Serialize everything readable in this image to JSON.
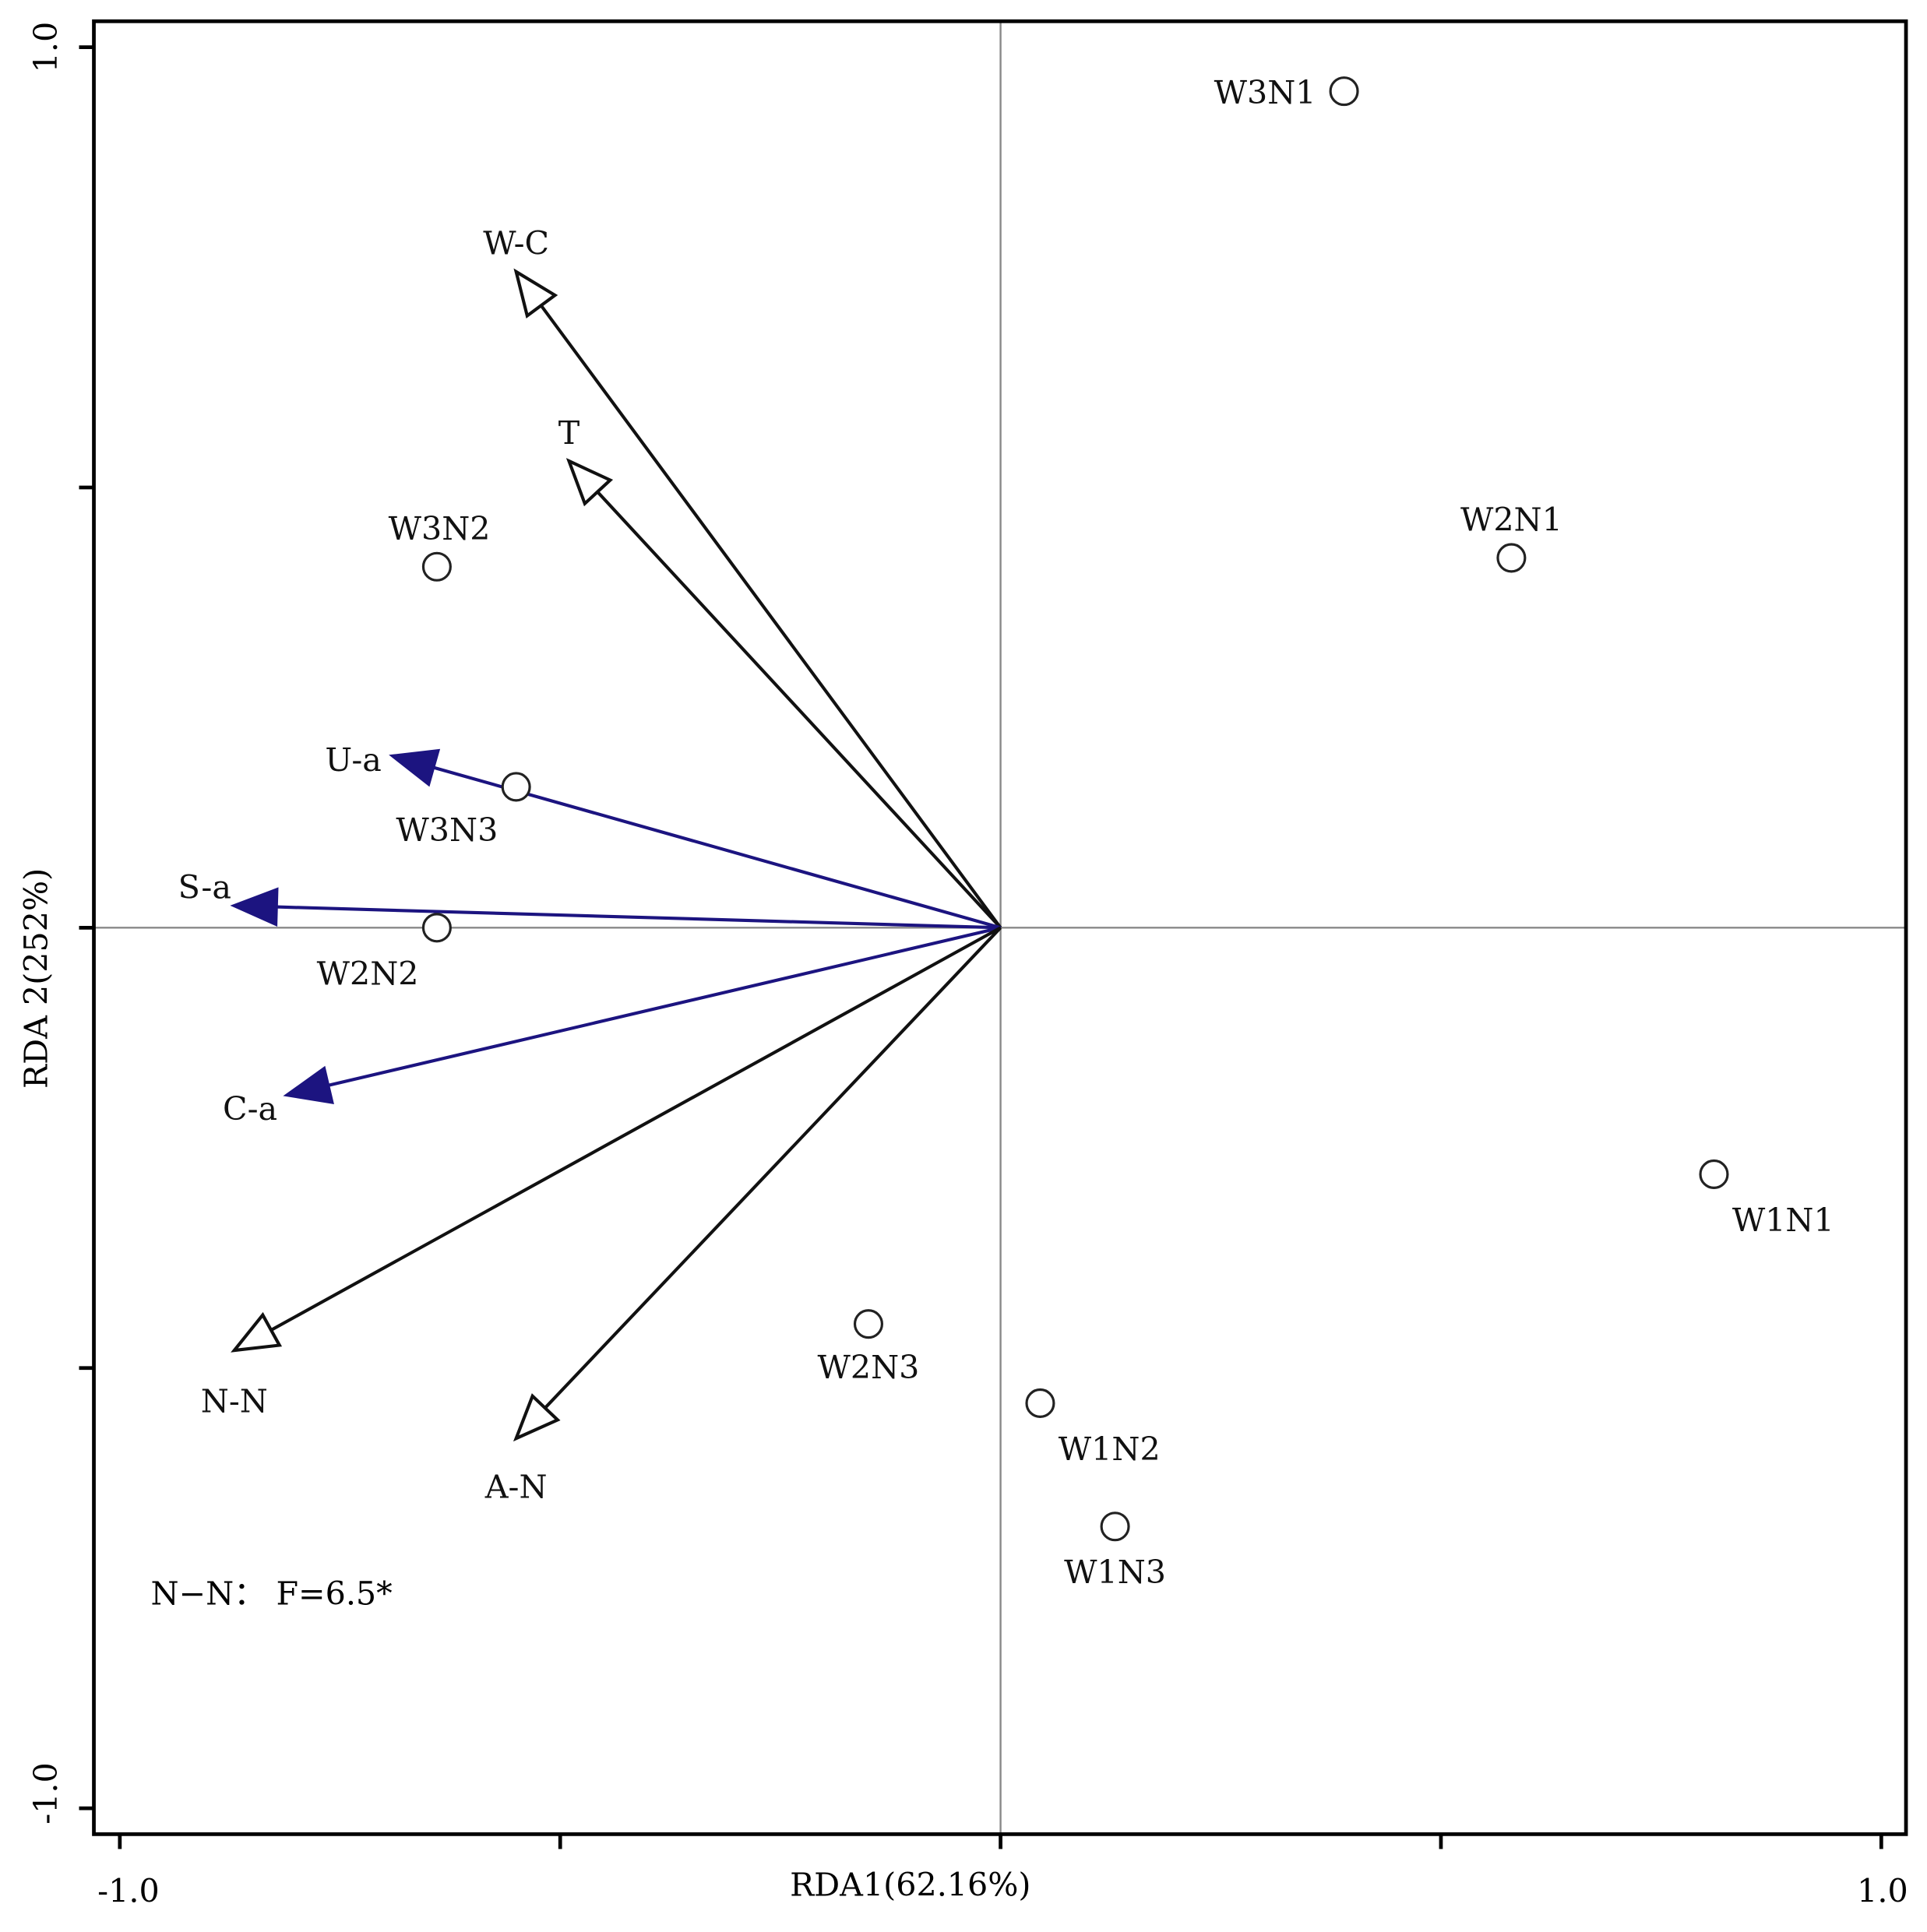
{
  "chart_data": {
    "type": "scatter",
    "subtype": "RDA biplot",
    "xlabel": "RDA1(62.16%)",
    "ylabel": "RDA 2(252%)",
    "xlim": [
      -1.0,
      1.0
    ],
    "ylim": [
      -1.0,
      1.0
    ],
    "x_tick_labels": [
      "-1.0",
      "1.0"
    ],
    "y_tick_labels": [
      "1.0",
      "-1.0"
    ],
    "ticks": [
      -1.0,
      -0.5,
      0,
      0.5,
      1.0
    ],
    "annotation": "N−N： F=6.5*",
    "samples": [
      {
        "label": "W3N1",
        "x": 0.39,
        "y": 0.95
      },
      {
        "label": "W2N1",
        "x": 0.58,
        "y": 0.42
      },
      {
        "label": "W3N2",
        "x": -0.64,
        "y": 0.41
      },
      {
        "label": "W3N3",
        "x": -0.55,
        "y": 0.16
      },
      {
        "label": "W2N2",
        "x": -0.64,
        "y": 0.0
      },
      {
        "label": "W1N1",
        "x": 0.81,
        "y": -0.28
      },
      {
        "label": "W2N3",
        "x": -0.15,
        "y": -0.45
      },
      {
        "label": "W1N2",
        "x": 0.045,
        "y": -0.54
      },
      {
        "label": "W1N3",
        "x": 0.13,
        "y": -0.68
      }
    ],
    "vectors": [
      {
        "label": "W-C",
        "x": -0.55,
        "y": 0.745,
        "group": "environment"
      },
      {
        "label": "T",
        "x": -0.49,
        "y": 0.53,
        "group": "environment"
      },
      {
        "label": "U-a",
        "x": -0.69,
        "y": 0.195,
        "group": "enzyme"
      },
      {
        "label": "S-a",
        "x": -0.87,
        "y": 0.025,
        "group": "enzyme"
      },
      {
        "label": "C-a",
        "x": -0.81,
        "y": -0.19,
        "group": "enzyme"
      },
      {
        "label": "N-N",
        "x": -0.87,
        "y": -0.48,
        "group": "environment"
      },
      {
        "label": "A-N",
        "x": -0.55,
        "y": -0.58,
        "group": "environment"
      }
    ],
    "colors": {
      "environment": "#111111",
      "enzyme": "#1c1480",
      "axis": "#000000",
      "zero_line": "#888888"
    }
  }
}
